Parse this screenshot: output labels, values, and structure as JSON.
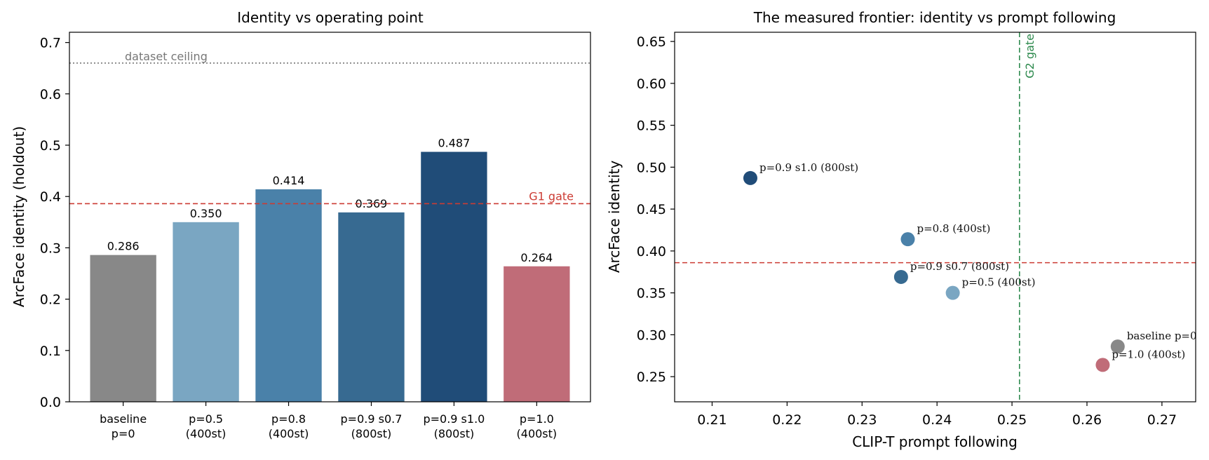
{
  "colors": {
    "gray": "#888888",
    "light_blue": "#7aa6c2",
    "mid_blue": "#4a81a9",
    "steel_blue": "#376a91",
    "dark_blue": "#204c78",
    "rose": "#c06c78",
    "gate_red": "#cc3b33",
    "gate_green": "#2e8a4e",
    "ceiling_gray": "#777777"
  },
  "chart_data": [
    {
      "type": "bar",
      "title": "Identity vs operating point",
      "xlabel": "",
      "ylabel": "ArcFace identity (holdout)",
      "ylim": [
        0,
        0.72
      ],
      "yticks": [
        "0.0",
        "0.1",
        "0.2",
        "0.3",
        "0.4",
        "0.5",
        "0.6",
        "0.7"
      ],
      "grid": false,
      "categories": [
        {
          "line1": "baseline",
          "line2": "p=0"
        },
        {
          "line1": "p=0.5",
          "line2": "(400st)"
        },
        {
          "line1": "p=0.8",
          "line2": "(400st)"
        },
        {
          "line1": "p=0.9 s0.7",
          "line2": "(800st)"
        },
        {
          "line1": "p=0.9 s1.0",
          "line2": "(800st)"
        },
        {
          "line1": "p=1.0",
          "line2": "(400st)"
        }
      ],
      "values": [
        0.286,
        0.35,
        0.414,
        0.369,
        0.487,
        0.264
      ],
      "value_labels": [
        "0.286",
        "0.350",
        "0.414",
        "0.369",
        "0.487",
        "0.264"
      ],
      "bar_colors": [
        "#888888",
        "#7aa6c2",
        "#4a81a9",
        "#376a91",
        "#204c78",
        "#c06c78"
      ],
      "reference_lines": [
        {
          "label": "G1 gate",
          "value": 0.386,
          "style": "dashed",
          "color": "#cc3b33"
        },
        {
          "label": "dataset ceiling",
          "value": 0.66,
          "style": "dotted",
          "color": "#777777"
        }
      ]
    },
    {
      "type": "scatter",
      "title": "The measured frontier: identity vs prompt following",
      "xlabel": "CLIP-T prompt following",
      "ylabel": "ArcFace identity",
      "xlim": [
        0.205,
        0.2745
      ],
      "ylim": [
        0.22,
        0.661
      ],
      "xticks": [
        "0.21",
        "0.22",
        "0.23",
        "0.24",
        "0.25",
        "0.26",
        "0.27"
      ],
      "yticks": [
        "0.25",
        "0.30",
        "0.35",
        "0.40",
        "0.45",
        "0.50",
        "0.55",
        "0.60",
        "0.65"
      ],
      "grid": false,
      "points": [
        {
          "label": "p=0.9 s1.0 (800st)",
          "x": 0.2151,
          "y": 0.487,
          "color": "#204c78"
        },
        {
          "label": "p=0.8 (400st)",
          "x": 0.2361,
          "y": 0.414,
          "color": "#4a81a9"
        },
        {
          "label": "p=0.9 s0.7 (800st)",
          "x": 0.2352,
          "y": 0.369,
          "color": "#376a91"
        },
        {
          "label": "p=0.5 (400st)",
          "x": 0.2421,
          "y": 0.35,
          "color": "#7aa6c2"
        },
        {
          "label": "baseline p=0",
          "x": 0.2641,
          "y": 0.286,
          "color": "#888888"
        },
        {
          "label": "p=1.0 (400st)",
          "x": 0.2621,
          "y": 0.264,
          "color": "#c06c78"
        }
      ],
      "reference_lines": [
        {
          "label": "",
          "axis": "y",
          "value": 0.386,
          "style": "dashed",
          "color": "#cc3b33"
        },
        {
          "label": "G2 gate",
          "axis": "x",
          "value": 0.251,
          "style": "dashed",
          "color": "#2e8a4e"
        }
      ]
    }
  ]
}
